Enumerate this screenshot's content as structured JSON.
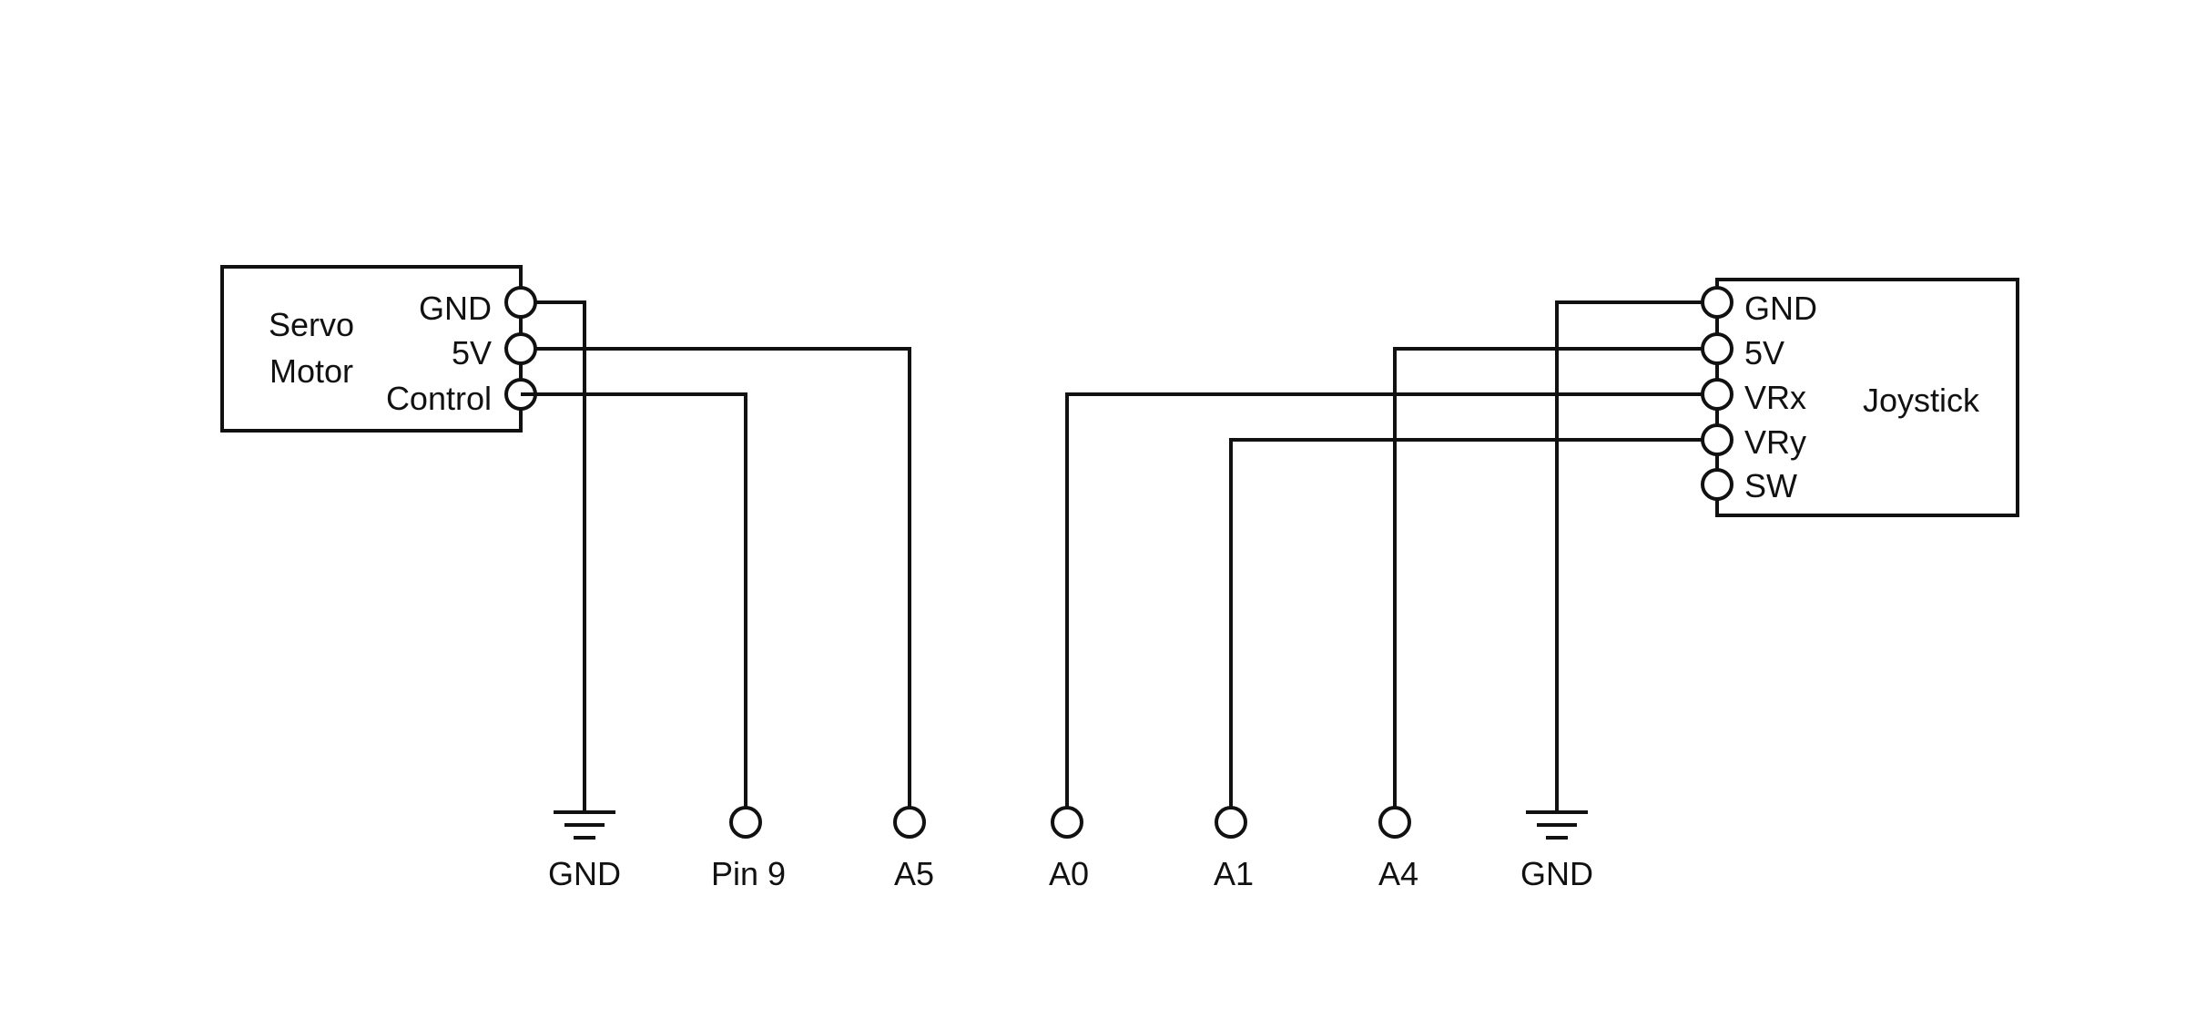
{
  "servo": {
    "title_line1": "Servo",
    "title_line2": "Motor",
    "pins": [
      "GND",
      "5V",
      "Control"
    ]
  },
  "joystick": {
    "title": "Joystick",
    "pins": [
      "GND",
      "5V",
      "VRx",
      "VRy",
      "SW"
    ]
  },
  "board_connections": [
    "GND",
    "Pin 9",
    "A5",
    "A0",
    "A1",
    "A4",
    "GND"
  ],
  "colors": {
    "line": "#111111",
    "background": "#ffffff"
  }
}
